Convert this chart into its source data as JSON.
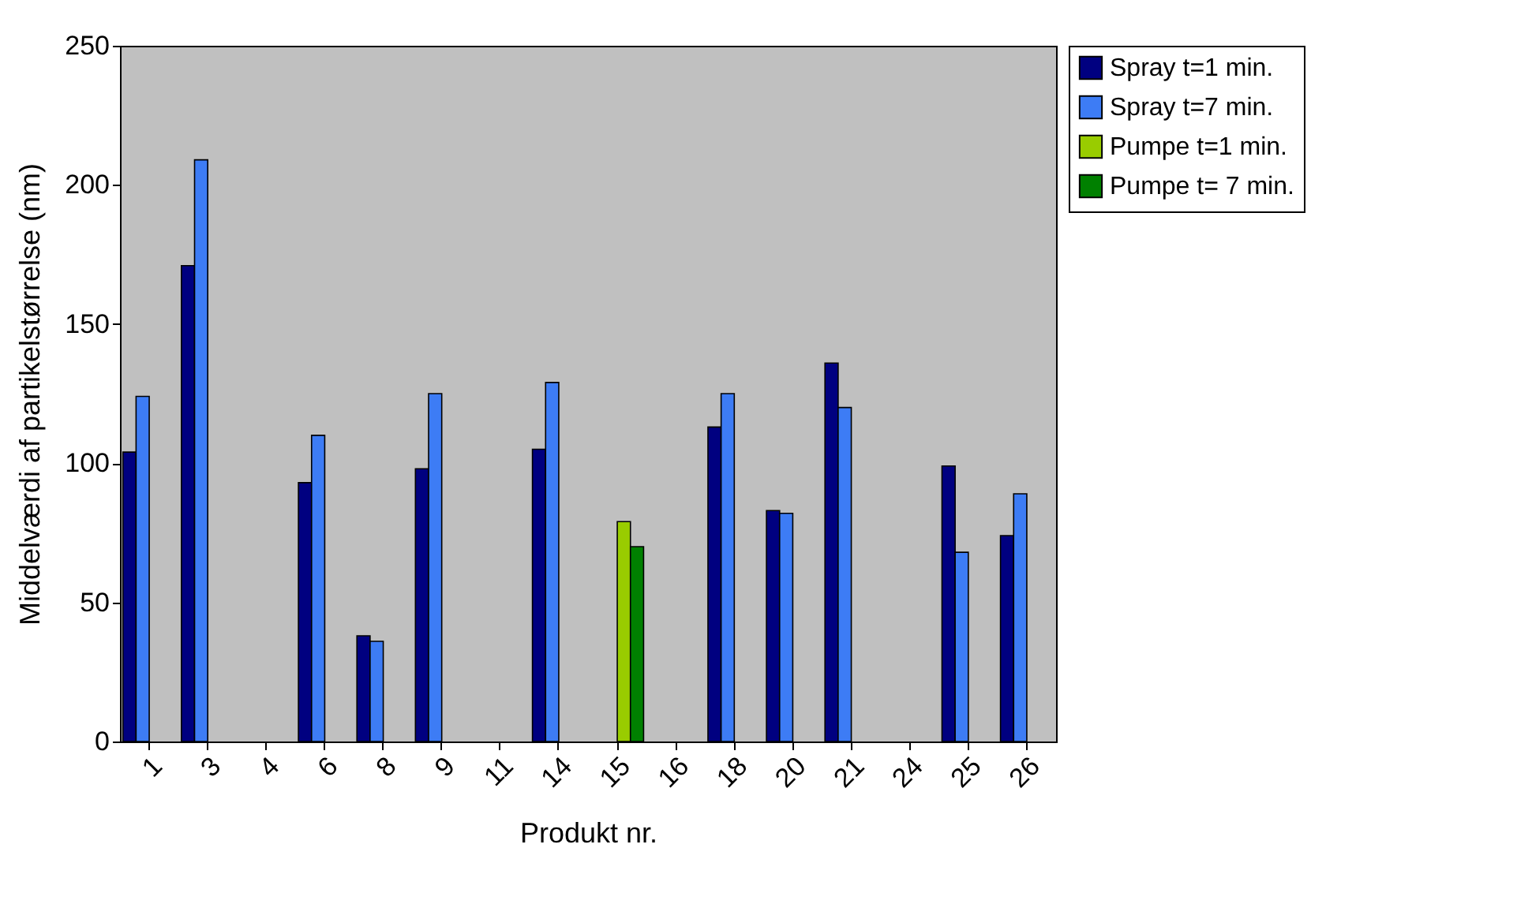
{
  "chart_data": {
    "type": "bar",
    "xlabel": "Produkt nr.",
    "ylabel": "Middelværdi af partikelstørrelse (nm)",
    "categories": [
      "1",
      "3",
      "4",
      "6",
      "8",
      "9",
      "11",
      "14",
      "15",
      "16",
      "18",
      "20",
      "21",
      "24",
      "25",
      "26"
    ],
    "series": [
      {
        "name": "Spray t=1 min.",
        "color": "#000080",
        "values": [
          104,
          171,
          null,
          93,
          38,
          98,
          null,
          105,
          null,
          null,
          113,
          83,
          136,
          null,
          99,
          74
        ]
      },
      {
        "name": "Spray t=7 min.",
        "color": "#3d7cf5",
        "values": [
          124,
          209,
          null,
          110,
          36,
          125,
          null,
          129,
          null,
          null,
          125,
          82,
          120,
          null,
          68,
          89
        ]
      },
      {
        "name": "Pumpe t=1 min.",
        "color": "#99cc00",
        "values": [
          null,
          null,
          null,
          null,
          null,
          null,
          null,
          null,
          79,
          null,
          null,
          null,
          null,
          null,
          null,
          null
        ]
      },
      {
        "name": "Pumpe t= 7 min.",
        "color": "#008000",
        "values": [
          null,
          null,
          null,
          null,
          null,
          null,
          null,
          null,
          70,
          null,
          null,
          null,
          null,
          null,
          null,
          null
        ]
      }
    ],
    "ylim": [
      0,
      250
    ],
    "yticks": [
      0,
      50,
      100,
      150,
      200,
      250
    ],
    "grid": false,
    "legend": "right"
  }
}
